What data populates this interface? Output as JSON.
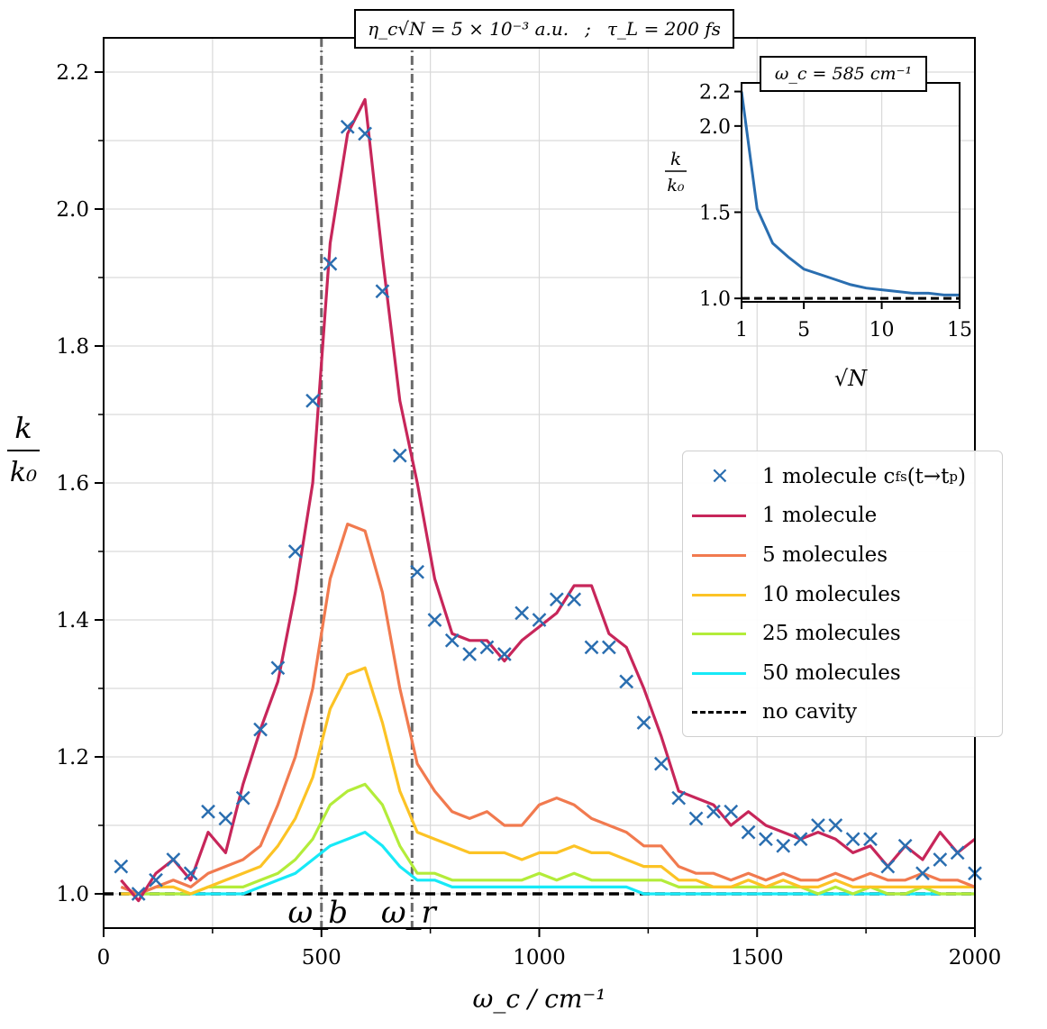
{
  "title": {
    "left": "η_c√N = 5 × 10⁻³ a.u.",
    "sep": ";",
    "right": "τ_L = 200 fs"
  },
  "colors": {
    "n1": "#c7265a",
    "n5": "#f17a4f",
    "n10": "#fcc325",
    "n25": "#b3ec3a",
    "n50": "#17e9f7",
    "cross": "#2a6eb0",
    "nocavity": "#000000",
    "inset_line": "#2a6eb0"
  },
  "chart_data": [
    {
      "type": "line",
      "xlabel": "ω_c / cm⁻¹",
      "ylabel_num": "k",
      "ylabel_den": "k₀",
      "xlim": [
        0,
        2000
      ],
      "ylim": [
        0.95,
        2.25
      ],
      "xticks": [
        0,
        500,
        1000,
        1500,
        2000
      ],
      "yticks": [
        1.0,
        1.2,
        1.4,
        1.6,
        1.8,
        2.0,
        2.2
      ],
      "grid": true,
      "legend_position": "right",
      "vlines": [
        {
          "x": 500,
          "label": "ω_b"
        },
        {
          "x": 708,
          "label": "ω_r"
        }
      ],
      "x": [
        40,
        80,
        120,
        160,
        200,
        240,
        280,
        320,
        360,
        400,
        440,
        480,
        520,
        560,
        600,
        640,
        680,
        720,
        760,
        800,
        840,
        880,
        920,
        960,
        1000,
        1040,
        1080,
        1120,
        1160,
        1200,
        1240,
        1280,
        1320,
        1360,
        1400,
        1440,
        1480,
        1520,
        1560,
        1600,
        1640,
        1680,
        1720,
        1760,
        1800,
        1840,
        1880,
        1920,
        1960,
        2000
      ],
      "series": [
        {
          "name": "1 molecule",
          "color_key": "n1",
          "style": "solid",
          "values": [
            1.02,
            0.99,
            1.03,
            1.05,
            1.02,
            1.09,
            1.06,
            1.16,
            1.24,
            1.31,
            1.44,
            1.6,
            1.95,
            2.11,
            2.16,
            1.93,
            1.72,
            1.6,
            1.46,
            1.38,
            1.37,
            1.37,
            1.34,
            1.37,
            1.39,
            1.41,
            1.45,
            1.45,
            1.38,
            1.36,
            1.3,
            1.23,
            1.15,
            1.14,
            1.13,
            1.1,
            1.12,
            1.1,
            1.09,
            1.08,
            1.09,
            1.08,
            1.06,
            1.07,
            1.04,
            1.07,
            1.05,
            1.09,
            1.06,
            1.08
          ]
        },
        {
          "name": "5 molecules",
          "color_key": "n5",
          "style": "solid",
          "values": [
            1.01,
            1.0,
            1.01,
            1.02,
            1.01,
            1.03,
            1.04,
            1.05,
            1.07,
            1.13,
            1.2,
            1.3,
            1.46,
            1.54,
            1.53,
            1.44,
            1.3,
            1.19,
            1.15,
            1.12,
            1.11,
            1.12,
            1.1,
            1.1,
            1.13,
            1.14,
            1.13,
            1.11,
            1.1,
            1.09,
            1.07,
            1.07,
            1.04,
            1.03,
            1.03,
            1.02,
            1.03,
            1.02,
            1.03,
            1.02,
            1.02,
            1.03,
            1.02,
            1.03,
            1.02,
            1.02,
            1.03,
            1.02,
            1.02,
            1.01
          ]
        },
        {
          "name": "10 molecules",
          "color_key": "n10",
          "style": "solid",
          "values": [
            1.0,
            1.0,
            1.01,
            1.01,
            1.0,
            1.01,
            1.02,
            1.03,
            1.04,
            1.07,
            1.11,
            1.17,
            1.27,
            1.32,
            1.33,
            1.25,
            1.15,
            1.09,
            1.08,
            1.07,
            1.06,
            1.06,
            1.06,
            1.05,
            1.06,
            1.06,
            1.07,
            1.06,
            1.06,
            1.05,
            1.04,
            1.04,
            1.02,
            1.02,
            1.01,
            1.01,
            1.02,
            1.01,
            1.02,
            1.01,
            1.01,
            1.02,
            1.01,
            1.01,
            1.01,
            1.01,
            1.01,
            1.01,
            1.01,
            1.01
          ]
        },
        {
          "name": "25 molecules",
          "color_key": "n25",
          "style": "solid",
          "values": [
            1.0,
            1.0,
            1.0,
            1.0,
            1.0,
            1.01,
            1.01,
            1.01,
            1.02,
            1.03,
            1.05,
            1.08,
            1.13,
            1.15,
            1.16,
            1.13,
            1.07,
            1.03,
            1.03,
            1.02,
            1.02,
            1.02,
            1.02,
            1.02,
            1.03,
            1.02,
            1.03,
            1.02,
            1.02,
            1.02,
            1.02,
            1.02,
            1.01,
            1.01,
            1.01,
            1.01,
            1.01,
            1.01,
            1.01,
            1.01,
            1.0,
            1.01,
            1.0,
            1.01,
            1.0,
            1.0,
            1.01,
            1.0,
            1.0,
            1.0
          ]
        },
        {
          "name": "50 molecules",
          "color_key": "n50",
          "style": "solid",
          "values": [
            1.0,
            1.0,
            1.0,
            1.0,
            1.0,
            1.0,
            1.0,
            1.0,
            1.01,
            1.02,
            1.03,
            1.05,
            1.07,
            1.08,
            1.09,
            1.07,
            1.04,
            1.02,
            1.02,
            1.01,
            1.01,
            1.01,
            1.01,
            1.01,
            1.01,
            1.01,
            1.01,
            1.01,
            1.01,
            1.01,
            1.0,
            1.0,
            1.0,
            1.0,
            1.0,
            1.0,
            1.0,
            1.0,
            1.0,
            1.0,
            1.0,
            1.0,
            1.0,
            1.0,
            1.0,
            1.0,
            1.0,
            1.0,
            1.0,
            1.0
          ]
        }
      ],
      "scatter": {
        "name": "1 molecule c_fs(t→t_p)",
        "color_key": "cross",
        "x": [
          40,
          80,
          120,
          160,
          200,
          240,
          280,
          320,
          360,
          400,
          440,
          480,
          520,
          560,
          600,
          640,
          680,
          720,
          760,
          800,
          840,
          880,
          920,
          960,
          1000,
          1040,
          1080,
          1120,
          1160,
          1200,
          1240,
          1280,
          1320,
          1360,
          1400,
          1440,
          1480,
          1520,
          1560,
          1600,
          1640,
          1680,
          1720,
          1760,
          1800,
          1840,
          1880,
          1920,
          1960,
          2000
        ],
        "y": [
          1.04,
          1.0,
          1.02,
          1.05,
          1.03,
          1.12,
          1.11,
          1.14,
          1.24,
          1.33,
          1.5,
          1.72,
          1.92,
          2.12,
          2.11,
          1.88,
          1.64,
          1.47,
          1.4,
          1.37,
          1.35,
          1.36,
          1.35,
          1.41,
          1.4,
          1.43,
          1.43,
          1.36,
          1.36,
          1.31,
          1.25,
          1.19,
          1.14,
          1.11,
          1.12,
          1.12,
          1.09,
          1.08,
          1.07,
          1.08,
          1.1,
          1.1,
          1.08,
          1.08,
          1.04,
          1.07,
          1.03,
          1.05,
          1.06,
          1.03
        ]
      },
      "baseline": {
        "name": "no cavity",
        "y": 1.0,
        "color_key": "nocavity",
        "style": "dashed"
      }
    },
    {
      "type": "line",
      "title": "ω_c = 585 cm⁻¹",
      "xlabel": "√N",
      "ylabel_num": "k",
      "ylabel_den": "k₀",
      "xlim": [
        1,
        15
      ],
      "ylim": [
        0.98,
        2.25
      ],
      "xticks": [
        1,
        5,
        10,
        15
      ],
      "yticks": [
        1.0,
        1.5,
        2.0,
        2.2
      ],
      "grid": true,
      "x": [
        1,
        2,
        3,
        4,
        5,
        6,
        7,
        8,
        9,
        10,
        11,
        12,
        13,
        14,
        15
      ],
      "values": [
        2.2,
        1.52,
        1.32,
        1.24,
        1.17,
        1.14,
        1.11,
        1.08,
        1.06,
        1.05,
        1.04,
        1.03,
        1.03,
        1.02,
        1.02
      ],
      "baseline": {
        "y": 1.0,
        "style": "dashed"
      }
    }
  ],
  "legend": [
    {
      "label": "1 molecule c",
      "label_sub": "fs",
      "label_tail": "(t→t",
      "label_tail_sub": "p",
      "label_end": ")",
      "kind": "cross",
      "color_key": "cross"
    },
    {
      "label": "1 molecule",
      "kind": "line",
      "color_key": "n1"
    },
    {
      "label": "5 molecules",
      "kind": "line",
      "color_key": "n5"
    },
    {
      "label": "10 molecules",
      "kind": "line",
      "color_key": "n10"
    },
    {
      "label": "25 molecules",
      "kind": "line",
      "color_key": "n25"
    },
    {
      "label": "50 molecules",
      "kind": "line",
      "color_key": "n50"
    },
    {
      "label": "no cavity",
      "kind": "dashed",
      "color_key": "nocavity"
    }
  ]
}
